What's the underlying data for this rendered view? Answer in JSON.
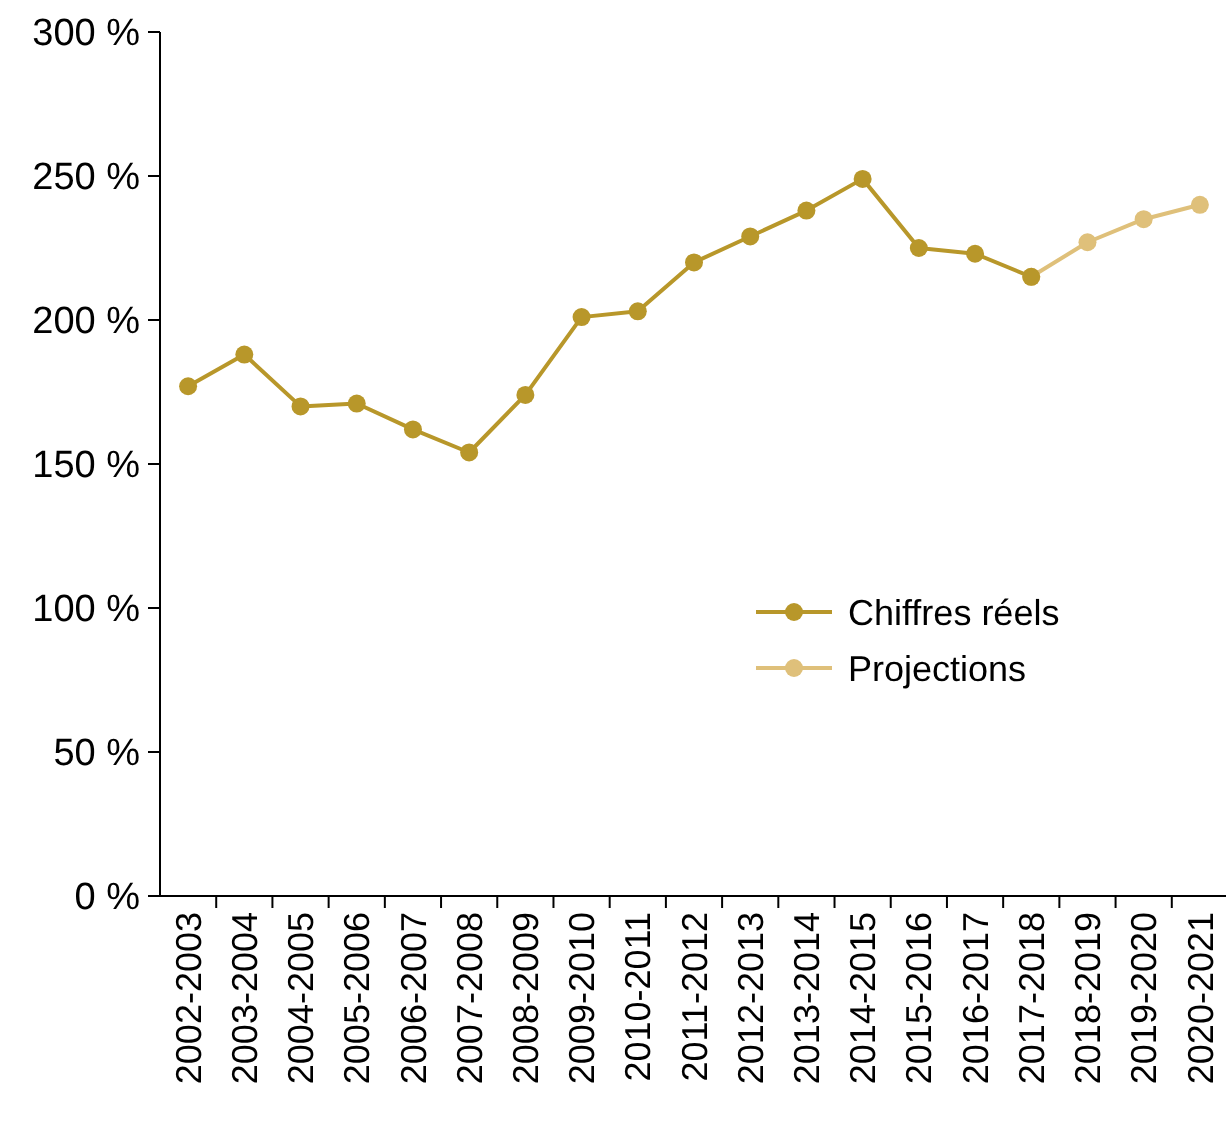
{
  "chart_data": {
    "type": "line",
    "categories": [
      "2002-2003",
      "2003-2004",
      "2004-2005",
      "2005-2006",
      "2006-2007",
      "2007-2008",
      "2008-2009",
      "2009-2010",
      "2010-2011",
      "2011-2012",
      "2012-2013",
      "2013-2014",
      "2014-2015",
      "2015-2016",
      "2016-2017",
      "2017-2018",
      "2018-2019",
      "2019-2020",
      "2020-2021"
    ],
    "series": [
      {
        "name": "Chiffres réels",
        "color": "#b8972a",
        "values": [
          177,
          188,
          170,
          171,
          162,
          154,
          174,
          201,
          203,
          220,
          229,
          238,
          249,
          225,
          223,
          215,
          null,
          null,
          null
        ]
      },
      {
        "name": "Projections",
        "color": "#dfc07a",
        "values": [
          null,
          null,
          null,
          null,
          null,
          null,
          null,
          null,
          null,
          null,
          null,
          null,
          null,
          null,
          null,
          215,
          227,
          235,
          240
        ]
      }
    ],
    "ylim": [
      0,
      300
    ],
    "yticks": [
      {
        "value": 0,
        "label": "0 %"
      },
      {
        "value": 50,
        "label": "50 %"
      },
      {
        "value": 100,
        "label": "100 %"
      },
      {
        "value": 150,
        "label": "150 %"
      },
      {
        "value": 200,
        "label": "200 %"
      },
      {
        "value": 250,
        "label": "250 %"
      },
      {
        "value": 300,
        "label": "300 %"
      }
    ],
    "marker": "circle",
    "line_style": "solid",
    "grid": false,
    "legend": "right"
  }
}
